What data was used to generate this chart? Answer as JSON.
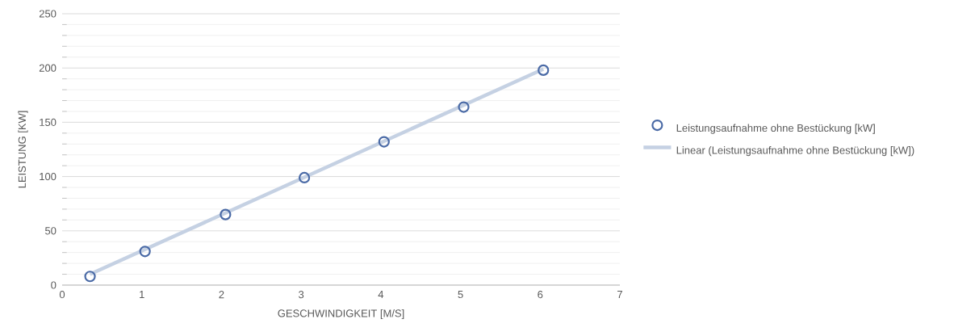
{
  "chart_data": {
    "type": "scatter",
    "xlabel": "GESCHWINDIGKEIT [M/S]",
    "ylabel": "LEISTUNG [KW]",
    "xlim": [
      0,
      7
    ],
    "xticks": [
      0,
      1,
      2,
      3,
      4,
      5,
      6,
      7
    ],
    "ylim": [
      0,
      250
    ],
    "yticks": [
      0,
      50,
      100,
      150,
      200,
      250
    ],
    "grid": "y",
    "legend": "right",
    "marker": "circle",
    "series": [
      {
        "name": "Leistungsaufnahme ohne Bestückung [kW]",
        "color": "#4a6aa6",
        "x": [
          0.35,
          1.04,
          2.05,
          3.04,
          4.04,
          5.04,
          6.04
        ],
        "values": [
          8,
          31,
          65,
          99,
          132,
          164,
          198
        ]
      },
      {
        "name": "Linear (Leistungsaufnahme ohne Bestückung [kW])",
        "type": "line",
        "color": "#c5d1e3",
        "marker": "none",
        "line_style": "solid",
        "x": [
          0.35,
          6.04
        ],
        "values": [
          10,
          199
        ]
      }
    ]
  }
}
